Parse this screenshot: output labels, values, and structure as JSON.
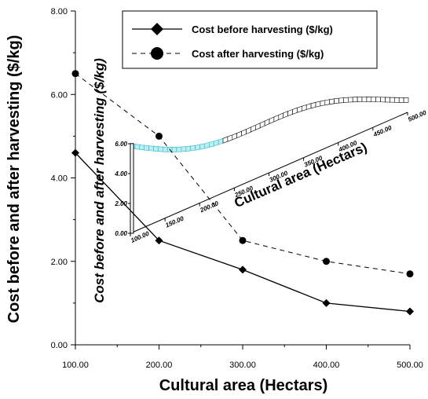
{
  "chart_data": {
    "type": "line",
    "x": [
      100,
      200,
      300,
      400,
      500
    ],
    "series": [
      {
        "name": "Cost before harvesting ($/kg)",
        "values": [
          4.6,
          2.5,
          1.8,
          1.0,
          0.8
        ],
        "marker": "diamond",
        "line": "solid"
      },
      {
        "name": "Cost after harvesting ($/kg)",
        "values": [
          6.5,
          5.0,
          2.5,
          2.0,
          1.7
        ],
        "marker": "circle",
        "line": "dashed"
      }
    ],
    "x_tick_labels": [
      "100.00",
      "200.00",
      "300.00",
      "400.00",
      "500.00"
    ],
    "y_tick_labels": [
      "0.00",
      "2.00",
      "4.00",
      "6.00",
      "8.00"
    ],
    "xlabel": "Cultural area (Hectars)",
    "ylabel": "Cost before and after harvesting ($/kg)",
    "xlim": [
      100,
      500
    ],
    "ylim": [
      0,
      8
    ],
    "grid": false,
    "legend_position": "top-right",
    "colors": {
      "line": "#000000",
      "ribbon_highlight": "#29b8c8"
    },
    "inset": {
      "type": "3d-ribbon",
      "xlabel": "Cultural area (Hectars)",
      "ylabel": "Cost before and after harvesting ($/kg)",
      "x_tick_labels": [
        "100.00",
        "150.00",
        "200.00",
        "250.00",
        "300.00",
        "350.00",
        "400.00",
        "450.00",
        "500.00"
      ],
      "y_tick_labels": [
        "0.00",
        "2.00",
        "4.00",
        "6.00"
      ]
    }
  }
}
